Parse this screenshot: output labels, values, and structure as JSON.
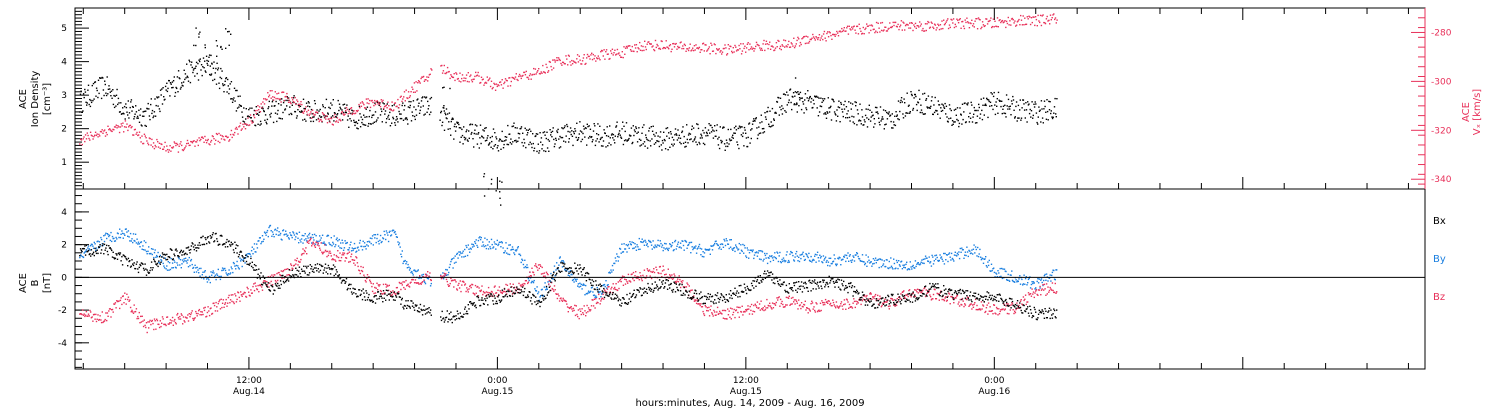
{
  "colors": {
    "black": "#000000",
    "red": "#e8315a",
    "blue": "#1a7fe0"
  },
  "x_axis": {
    "label": "hours:minutes, Aug. 14, 2009 - Aug. 16, 2009",
    "range_hours": [
      3.6,
      68.8
    ],
    "ticks": [
      {
        "hour": 12,
        "time": "12:00",
        "date": "Aug.14"
      },
      {
        "hour": 24,
        "time": "0:00",
        "date": "Aug.15"
      },
      {
        "hour": 36,
        "time": "12:00",
        "date": "Aug.15"
      },
      {
        "hour": 48,
        "time": "0:00",
        "date": "Aug.16"
      }
    ]
  },
  "chart_data": [
    {
      "type": "scatter",
      "panel": "top",
      "ylabel_lines": [
        "ACE",
        "Ion Density",
        "[cm⁻³]"
      ],
      "ylim": [
        0.2,
        5.6
      ],
      "yticks": [
        1,
        2,
        3,
        4,
        5
      ],
      "y2label_lines": [
        "ACE",
        "Vₓ [km/s]"
      ],
      "y2lim": [
        -344,
        -270
      ],
      "y2ticks": [
        -280,
        -300,
        -320,
        -340
      ],
      "series": [
        {
          "name": "Ion Density",
          "axis": "left",
          "color": "black",
          "points": [
            [
              3.8,
              2.8
            ],
            [
              5,
              3.3
            ],
            [
              6,
              2.6
            ],
            [
              7,
              2.4
            ],
            [
              8,
              3.1
            ],
            [
              9,
              3.7
            ],
            [
              10,
              3.9
            ],
            [
              11,
              3.3
            ],
            [
              11.6,
              2.6
            ],
            [
              12,
              2.4
            ],
            [
              13,
              2.5
            ],
            [
              14,
              2.7
            ],
            [
              15,
              2.5
            ],
            [
              16,
              2.6
            ],
            [
              17,
              2.3
            ],
            [
              18,
              2.5
            ],
            [
              19,
              2.4
            ],
            [
              19.6,
              2.5
            ],
            [
              20.6,
              2.7
            ],
            [
              21,
              2.6
            ],
            [
              22,
              1.9
            ],
            [
              23,
              1.8
            ],
            [
              24,
              1.7
            ],
            [
              25,
              1.9
            ],
            [
              26,
              1.6
            ],
            [
              27,
              1.8
            ],
            [
              28,
              1.9
            ],
            [
              29,
              1.8
            ],
            [
              30,
              1.9
            ],
            [
              31,
              1.8
            ],
            [
              32,
              1.7
            ],
            [
              33,
              1.8
            ],
            [
              34,
              1.9
            ],
            [
              35,
              1.7
            ],
            [
              36,
              1.8
            ],
            [
              37,
              2.3
            ],
            [
              38,
              2.9
            ],
            [
              39,
              2.8
            ],
            [
              40,
              2.6
            ],
            [
              41,
              2.5
            ],
            [
              42,
              2.4
            ],
            [
              43,
              2.3
            ],
            [
              44,
              2.9
            ],
            [
              45,
              2.7
            ],
            [
              46,
              2.4
            ],
            [
              47,
              2.5
            ],
            [
              48,
              2.8
            ],
            [
              49,
              2.6
            ],
            [
              50,
              2.5
            ],
            [
              51,
              2.6
            ]
          ],
          "spread": 0.35,
          "spikes": [
            [
              9.5,
              5.3
            ],
            [
              11,
              5.2
            ],
            [
              10,
              4.6
            ],
            [
              10.5,
              4.9
            ],
            [
              24,
              0.5
            ],
            [
              23.5,
              0.8
            ],
            [
              38.5,
              3.6
            ],
            [
              21.5,
              3.3
            ]
          ]
        },
        {
          "name": "Vx",
          "axis": "right",
          "color": "red",
          "points": [
            [
              3.8,
              -324
            ],
            [
              5,
              -320
            ],
            [
              6,
              -318
            ],
            [
              7,
              -324
            ],
            [
              8,
              -327
            ],
            [
              9,
              -326
            ],
            [
              10,
              -324
            ],
            [
              11,
              -322
            ],
            [
              12,
              -316
            ],
            [
              13,
              -305
            ],
            [
              14,
              -307
            ],
            [
              15,
              -313
            ],
            [
              16,
              -316
            ],
            [
              17,
              -311
            ],
            [
              18,
              -308
            ],
            [
              19,
              -310
            ],
            [
              20,
              -302
            ],
            [
              20.6,
              -298
            ],
            [
              21,
              -293
            ],
            [
              22,
              -298
            ],
            [
              23,
              -298
            ],
            [
              24,
              -302
            ],
            [
              25,
              -298
            ],
            [
              26,
              -296
            ],
            [
              27,
              -291
            ],
            [
              28,
              -291
            ],
            [
              29,
              -289
            ],
            [
              30,
              -288
            ],
            [
              31,
              -285
            ],
            [
              32,
              -285
            ],
            [
              33,
              -286
            ],
            [
              34,
              -286
            ],
            [
              35,
              -287
            ],
            [
              36,
              -286
            ],
            [
              37,
              -285
            ],
            [
              38,
              -285
            ],
            [
              39,
              -282
            ],
            [
              40,
              -281
            ],
            [
              41,
              -279
            ],
            [
              42,
              -278
            ],
            [
              43,
              -277
            ],
            [
              44,
              -277
            ],
            [
              45,
              -277
            ],
            [
              46,
              -276
            ],
            [
              47,
              -276
            ],
            [
              48,
              -276
            ],
            [
              49,
              -275
            ],
            [
              50,
              -275
            ],
            [
              51,
              -274
            ]
          ],
          "spread": 2.2,
          "spikes": []
        }
      ]
    },
    {
      "type": "scatter",
      "panel": "bottom",
      "ylabel_lines": [
        "ACE",
        "B",
        "[nT]"
      ],
      "ylim": [
        -5.6,
        5.4
      ],
      "yticks": [
        4,
        2,
        0,
        -2,
        -4
      ],
      "zero_line": true,
      "legend": [
        "Bx",
        "By",
        "Bz"
      ],
      "series": [
        {
          "name": "Bx",
          "color": "black",
          "points": [
            [
              3.8,
              1.6
            ],
            [
              5,
              1.8
            ],
            [
              6,
              1.0
            ],
            [
              7,
              0.5
            ],
            [
              8,
              1.4
            ],
            [
              9,
              1.6
            ],
            [
              10,
              2.5
            ],
            [
              11,
              2.2
            ],
            [
              12,
              1.0
            ],
            [
              13,
              -0.8
            ],
            [
              14,
              0.3
            ],
            [
              15,
              0.5
            ],
            [
              16,
              0.6
            ],
            [
              17,
              -0.8
            ],
            [
              18,
              -1.2
            ],
            [
              19,
              -1.0
            ],
            [
              19.5,
              -1.6
            ],
            [
              21,
              -2.3
            ],
            [
              22,
              -2.4
            ],
            [
              23,
              -1.4
            ],
            [
              24,
              -1.2
            ],
            [
              25,
              -0.6
            ],
            [
              26,
              -1.6
            ],
            [
              27,
              0.7
            ],
            [
              28,
              0.5
            ],
            [
              29,
              -0.8
            ],
            [
              30,
              -1.5
            ],
            [
              31,
              -0.8
            ],
            [
              32,
              -0.3
            ],
            [
              33,
              -0.8
            ],
            [
              34,
              -1.3
            ],
            [
              35,
              -1.2
            ],
            [
              36,
              -0.6
            ],
            [
              37,
              0.2
            ],
            [
              38,
              -0.6
            ],
            [
              39,
              -0.5
            ],
            [
              40,
              -0.2
            ],
            [
              41,
              -0.6
            ],
            [
              42,
              -1.6
            ],
            [
              43,
              -1.3
            ],
            [
              44,
              -1.2
            ],
            [
              45,
              -0.6
            ],
            [
              46,
              -1.0
            ],
            [
              47,
              -1.1
            ],
            [
              48,
              -1.2
            ],
            [
              49,
              -1.6
            ],
            [
              50,
              -2.2
            ],
            [
              51,
              -2.1
            ]
          ],
          "spread": 0.35
        },
        {
          "name": "By",
          "color": "blue",
          "points": [
            [
              3.8,
              1.2
            ],
            [
              5,
              2.4
            ],
            [
              6,
              2.8
            ],
            [
              7,
              1.9
            ],
            [
              8,
              0.8
            ],
            [
              9,
              1.0
            ],
            [
              10,
              0.0
            ],
            [
              11,
              0.4
            ],
            [
              12,
              1.4
            ],
            [
              13,
              2.9
            ],
            [
              14,
              2.5
            ],
            [
              15,
              2.4
            ],
            [
              16,
              2.3
            ],
            [
              17,
              1.8
            ],
            [
              18,
              2.3
            ],
            [
              19,
              2.7
            ],
            [
              19.5,
              0.9
            ],
            [
              21,
              -0.5
            ],
            [
              22,
              1.2
            ],
            [
              23,
              2.2
            ],
            [
              24,
              2.0
            ],
            [
              25,
              1.6
            ],
            [
              26,
              -1.2
            ],
            [
              27,
              1.0
            ],
            [
              28,
              -0.6
            ],
            [
              29,
              -1.0
            ],
            [
              30,
              1.9
            ],
            [
              31,
              2.1
            ],
            [
              32,
              1.9
            ],
            [
              33,
              2.0
            ],
            [
              34,
              1.6
            ],
            [
              35,
              2.2
            ],
            [
              36,
              1.6
            ],
            [
              37,
              1.2
            ],
            [
              38,
              1.3
            ],
            [
              39,
              1.4
            ],
            [
              40,
              1.0
            ],
            [
              41,
              1.3
            ],
            [
              42,
              1.0
            ],
            [
              43,
              0.9
            ],
            [
              44,
              0.8
            ],
            [
              45,
              1.1
            ],
            [
              46,
              1.3
            ],
            [
              47,
              1.8
            ],
            [
              48,
              0.4
            ],
            [
              49,
              0.0
            ],
            [
              50,
              -0.4
            ],
            [
              51,
              0.3
            ]
          ],
          "spread": 0.35
        },
        {
          "name": "Bz",
          "color": "red",
          "points": [
            [
              3.8,
              -2.2
            ],
            [
              5,
              -2.4
            ],
            [
              6,
              -1.2
            ],
            [
              7,
              -3.0
            ],
            [
              8,
              -2.6
            ],
            [
              9,
              -2.4
            ],
            [
              10,
              -2.0
            ],
            [
              11,
              -1.4
            ],
            [
              12,
              -0.8
            ],
            [
              13,
              -0.2
            ],
            [
              14,
              0.6
            ],
            [
              15,
              2.2
            ],
            [
              16,
              1.4
            ],
            [
              17,
              1.2
            ],
            [
              18,
              -0.6
            ],
            [
              19,
              -0.8
            ],
            [
              19.5,
              -0.4
            ],
            [
              21,
              0.2
            ],
            [
              22,
              -0.4
            ],
            [
              23,
              -0.8
            ],
            [
              24,
              -0.8
            ],
            [
              25,
              -0.6
            ],
            [
              26,
              0.8
            ],
            [
              27,
              -1.4
            ],
            [
              28,
              -2.2
            ],
            [
              29,
              -1.2
            ],
            [
              30,
              -0.2
            ],
            [
              31,
              0.2
            ],
            [
              32,
              0.4
            ],
            [
              33,
              -0.4
            ],
            [
              34,
              -2.0
            ],
            [
              35,
              -2.2
            ],
            [
              36,
              -2.0
            ],
            [
              37,
              -1.6
            ],
            [
              38,
              -1.4
            ],
            [
              39,
              -1.8
            ],
            [
              40,
              -1.6
            ],
            [
              41,
              -1.6
            ],
            [
              42,
              -1.2
            ],
            [
              43,
              -1.6
            ],
            [
              44,
              -0.8
            ],
            [
              45,
              -1.0
            ],
            [
              46,
              -1.3
            ],
            [
              47,
              -1.6
            ],
            [
              48,
              -2.0
            ],
            [
              49,
              -1.8
            ],
            [
              50,
              -0.8
            ],
            [
              51,
              -0.6
            ]
          ],
          "spread": 0.35
        }
      ]
    }
  ]
}
